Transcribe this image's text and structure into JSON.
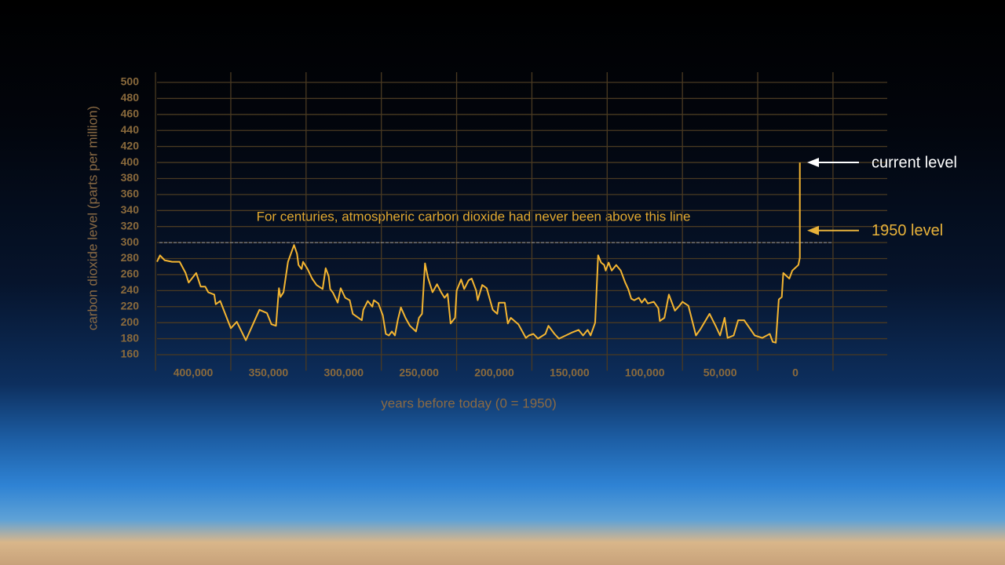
{
  "chart_data": {
    "type": "line",
    "y_axis_label": "carbon dioxide level (parts per million)",
    "x_axis_label": "years before today (0 = 1950)",
    "annotation": "For centuries, atmospheric carbon dioxide had never been above this line",
    "threshold": 300,
    "markers": [
      {
        "label": "current level",
        "value": 400,
        "color": "#ffffff"
      },
      {
        "label": "1950 level",
        "value": 315,
        "color": "#e8b23a"
      }
    ],
    "color": "#f4b531",
    "xlim": [
      424000,
      -24000
    ],
    "ylim": [
      140,
      510
    ],
    "xticks": [
      {
        "value": 400000,
        "label": "400,000"
      },
      {
        "value": 350000,
        "label": "350,000"
      },
      {
        "value": 300000,
        "label": "300,000"
      },
      {
        "value": 250000,
        "label": "250,000"
      },
      {
        "value": 200000,
        "label": "200,000"
      },
      {
        "value": 150000,
        "label": "150,000"
      },
      {
        "value": 100000,
        "label": "100,000"
      },
      {
        "value": 50000,
        "label": "50,000"
      },
      0
    ],
    "yticks": [
      160,
      180,
      200,
      220,
      240,
      260,
      280,
      300,
      320,
      340,
      360,
      380,
      400,
      420,
      440,
      460,
      480,
      500
    ],
    "grid": true,
    "x": [
      424000,
      422000,
      419000,
      414000,
      409000,
      405000,
      403000,
      398000,
      395000,
      392000,
      390000,
      386000,
      385000,
      382000,
      375000,
      371000,
      365000,
      356000,
      351000,
      348000,
      345000,
      343000,
      342000,
      340000,
      337000,
      333000,
      331000,
      330000,
      328000,
      327000,
      324000,
      321000,
      318000,
      314000,
      312000,
      310000,
      309000,
      307000,
      304000,
      302000,
      299000,
      296000,
      294000,
      288000,
      287000,
      284000,
      281000,
      280000,
      277000,
      274000,
      272000,
      270000,
      268000,
      266000,
      264000,
      262000,
      259000,
      256000,
      252000,
      250000,
      248000,
      246000,
      244000,
      241000,
      238000,
      235000,
      233000,
      231000,
      229000,
      226000,
      225000,
      222000,
      220000,
      217000,
      215000,
      212000,
      211000,
      208000,
      205000,
      201000,
      198000,
      197000,
      193000,
      191000,
      189000,
      184000,
      179000,
      177000,
      174000,
      171000,
      166000,
      164000,
      160000,
      157000,
      148000,
      144000,
      141000,
      138000,
      136000,
      133000,
      131000,
      129000,
      127000,
      126000,
      124000,
      122000,
      119000,
      116000,
      113000,
      111000,
      109000,
      107000,
      104000,
      102000,
      100000,
      98000,
      94000,
      91000,
      90000,
      87000,
      84000,
      80000,
      77000,
      75000,
      71000,
      66000,
      63000,
      57000,
      53000,
      50000,
      47000,
      45000,
      41000,
      38000,
      34000,
      27000,
      22000,
      17000,
      15000,
      13000,
      11000,
      9000,
      8000,
      4000,
      2000,
      -2000,
      -3000,
      -3000,
      -3000
    ],
    "values": [
      276,
      284,
      278,
      276,
      276,
      262,
      250,
      262,
      245,
      245,
      238,
      235,
      223,
      227,
      193,
      201,
      178,
      216,
      212,
      198,
      196,
      243,
      232,
      238,
      276,
      297,
      286,
      272,
      267,
      276,
      267,
      255,
      247,
      242,
      268,
      258,
      242,
      237,
      225,
      243,
      231,
      228,
      211,
      203,
      216,
      227,
      220,
      228,
      224,
      209,
      186,
      184,
      189,
      184,
      204,
      219,
      206,
      196,
      189,
      206,
      211,
      274,
      256,
      238,
      248,
      237,
      231,
      236,
      199,
      206,
      240,
      254,
      242,
      253,
      255,
      240,
      228,
      247,
      243,
      216,
      211,
      225,
      225,
      199,
      206,
      198,
      181,
      184,
      186,
      180,
      186,
      196,
      186,
      180,
      188,
      191,
      184,
      191,
      184,
      200,
      284,
      275,
      272,
      265,
      275,
      265,
      272,
      265,
      250,
      242,
      230,
      228,
      231,
      225,
      230,
      224,
      226,
      218,
      202,
      206,
      235,
      215,
      221,
      226,
      221,
      184,
      192,
      211,
      196,
      184,
      206,
      181,
      184,
      203,
      203,
      184,
      181,
      186,
      176,
      175,
      229,
      232,
      262,
      255,
      265,
      272,
      281,
      310,
      400
    ]
  }
}
